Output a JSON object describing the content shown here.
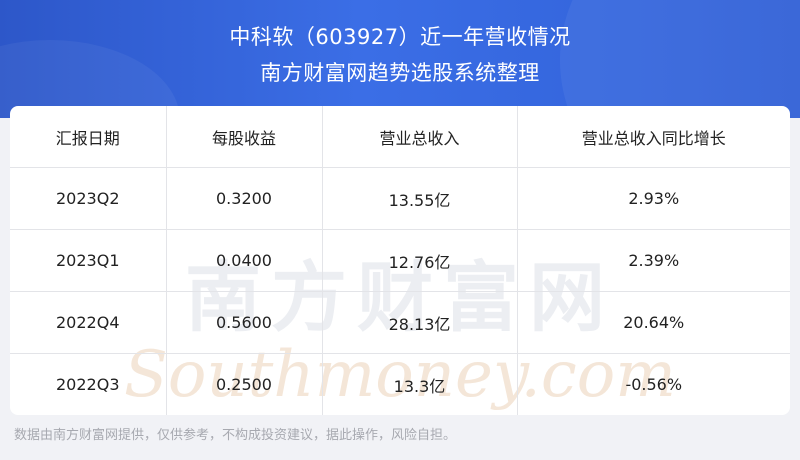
{
  "header": {
    "title": "中科软（603927）近一年营收情况",
    "subtitle": "南方财富网趋势选股系统整理"
  },
  "table": {
    "columns": [
      "汇报日期",
      "每股收益",
      "营业总收入",
      "营业总收入同比增长"
    ],
    "rows": [
      [
        "2023Q2",
        "0.3200",
        "13.55亿",
        "2.93%"
      ],
      [
        "2023Q1",
        "0.0400",
        "12.76亿",
        "2.39%"
      ],
      [
        "2022Q4",
        "0.5600",
        "28.13亿",
        "20.64%"
      ],
      [
        "2022Q3",
        "0.2500",
        "13.3亿",
        "-0.56%"
      ]
    ]
  },
  "watermark": {
    "cn": "南方财富网",
    "en": "Southmoney.com"
  },
  "footer": {
    "disclaimer": "数据由南方财富网提供，仅供参考，不构成投资建议，据此操作，风险自担。"
  },
  "colors": {
    "header_start": "#2d57c9",
    "header_end": "#3b6ee6",
    "watermark": "#e9ebef"
  }
}
